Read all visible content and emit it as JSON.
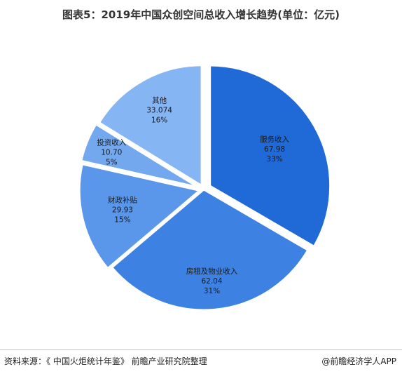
{
  "title": "图表5：2019年中国众创空间总收入增长趋势(单位：亿元)",
  "source": "资料来源：《 中国火炬统计年鉴》 前瞻产业研究院整理",
  "brand": "@前瞻经济学人APP",
  "chart_data": {
    "type": "pie",
    "unit": "亿元",
    "slices": [
      {
        "name": "服务收入",
        "value": "67.98",
        "percent": "33%",
        "color": "#1f6ad6"
      },
      {
        "name": "房租及物业收入",
        "value": "62.04",
        "percent": "31%",
        "color": "#3d82e2"
      },
      {
        "name": "财政补贴",
        "value": "29.93",
        "percent": "15%",
        "color": "#5a97ea"
      },
      {
        "name": "投资收入",
        "value": "10.70",
        "percent": "5%",
        "color": "#73a8ef"
      },
      {
        "name": "其他",
        "value": "33.074",
        "percent": "16%",
        "color": "#86b5f3"
      }
    ]
  }
}
